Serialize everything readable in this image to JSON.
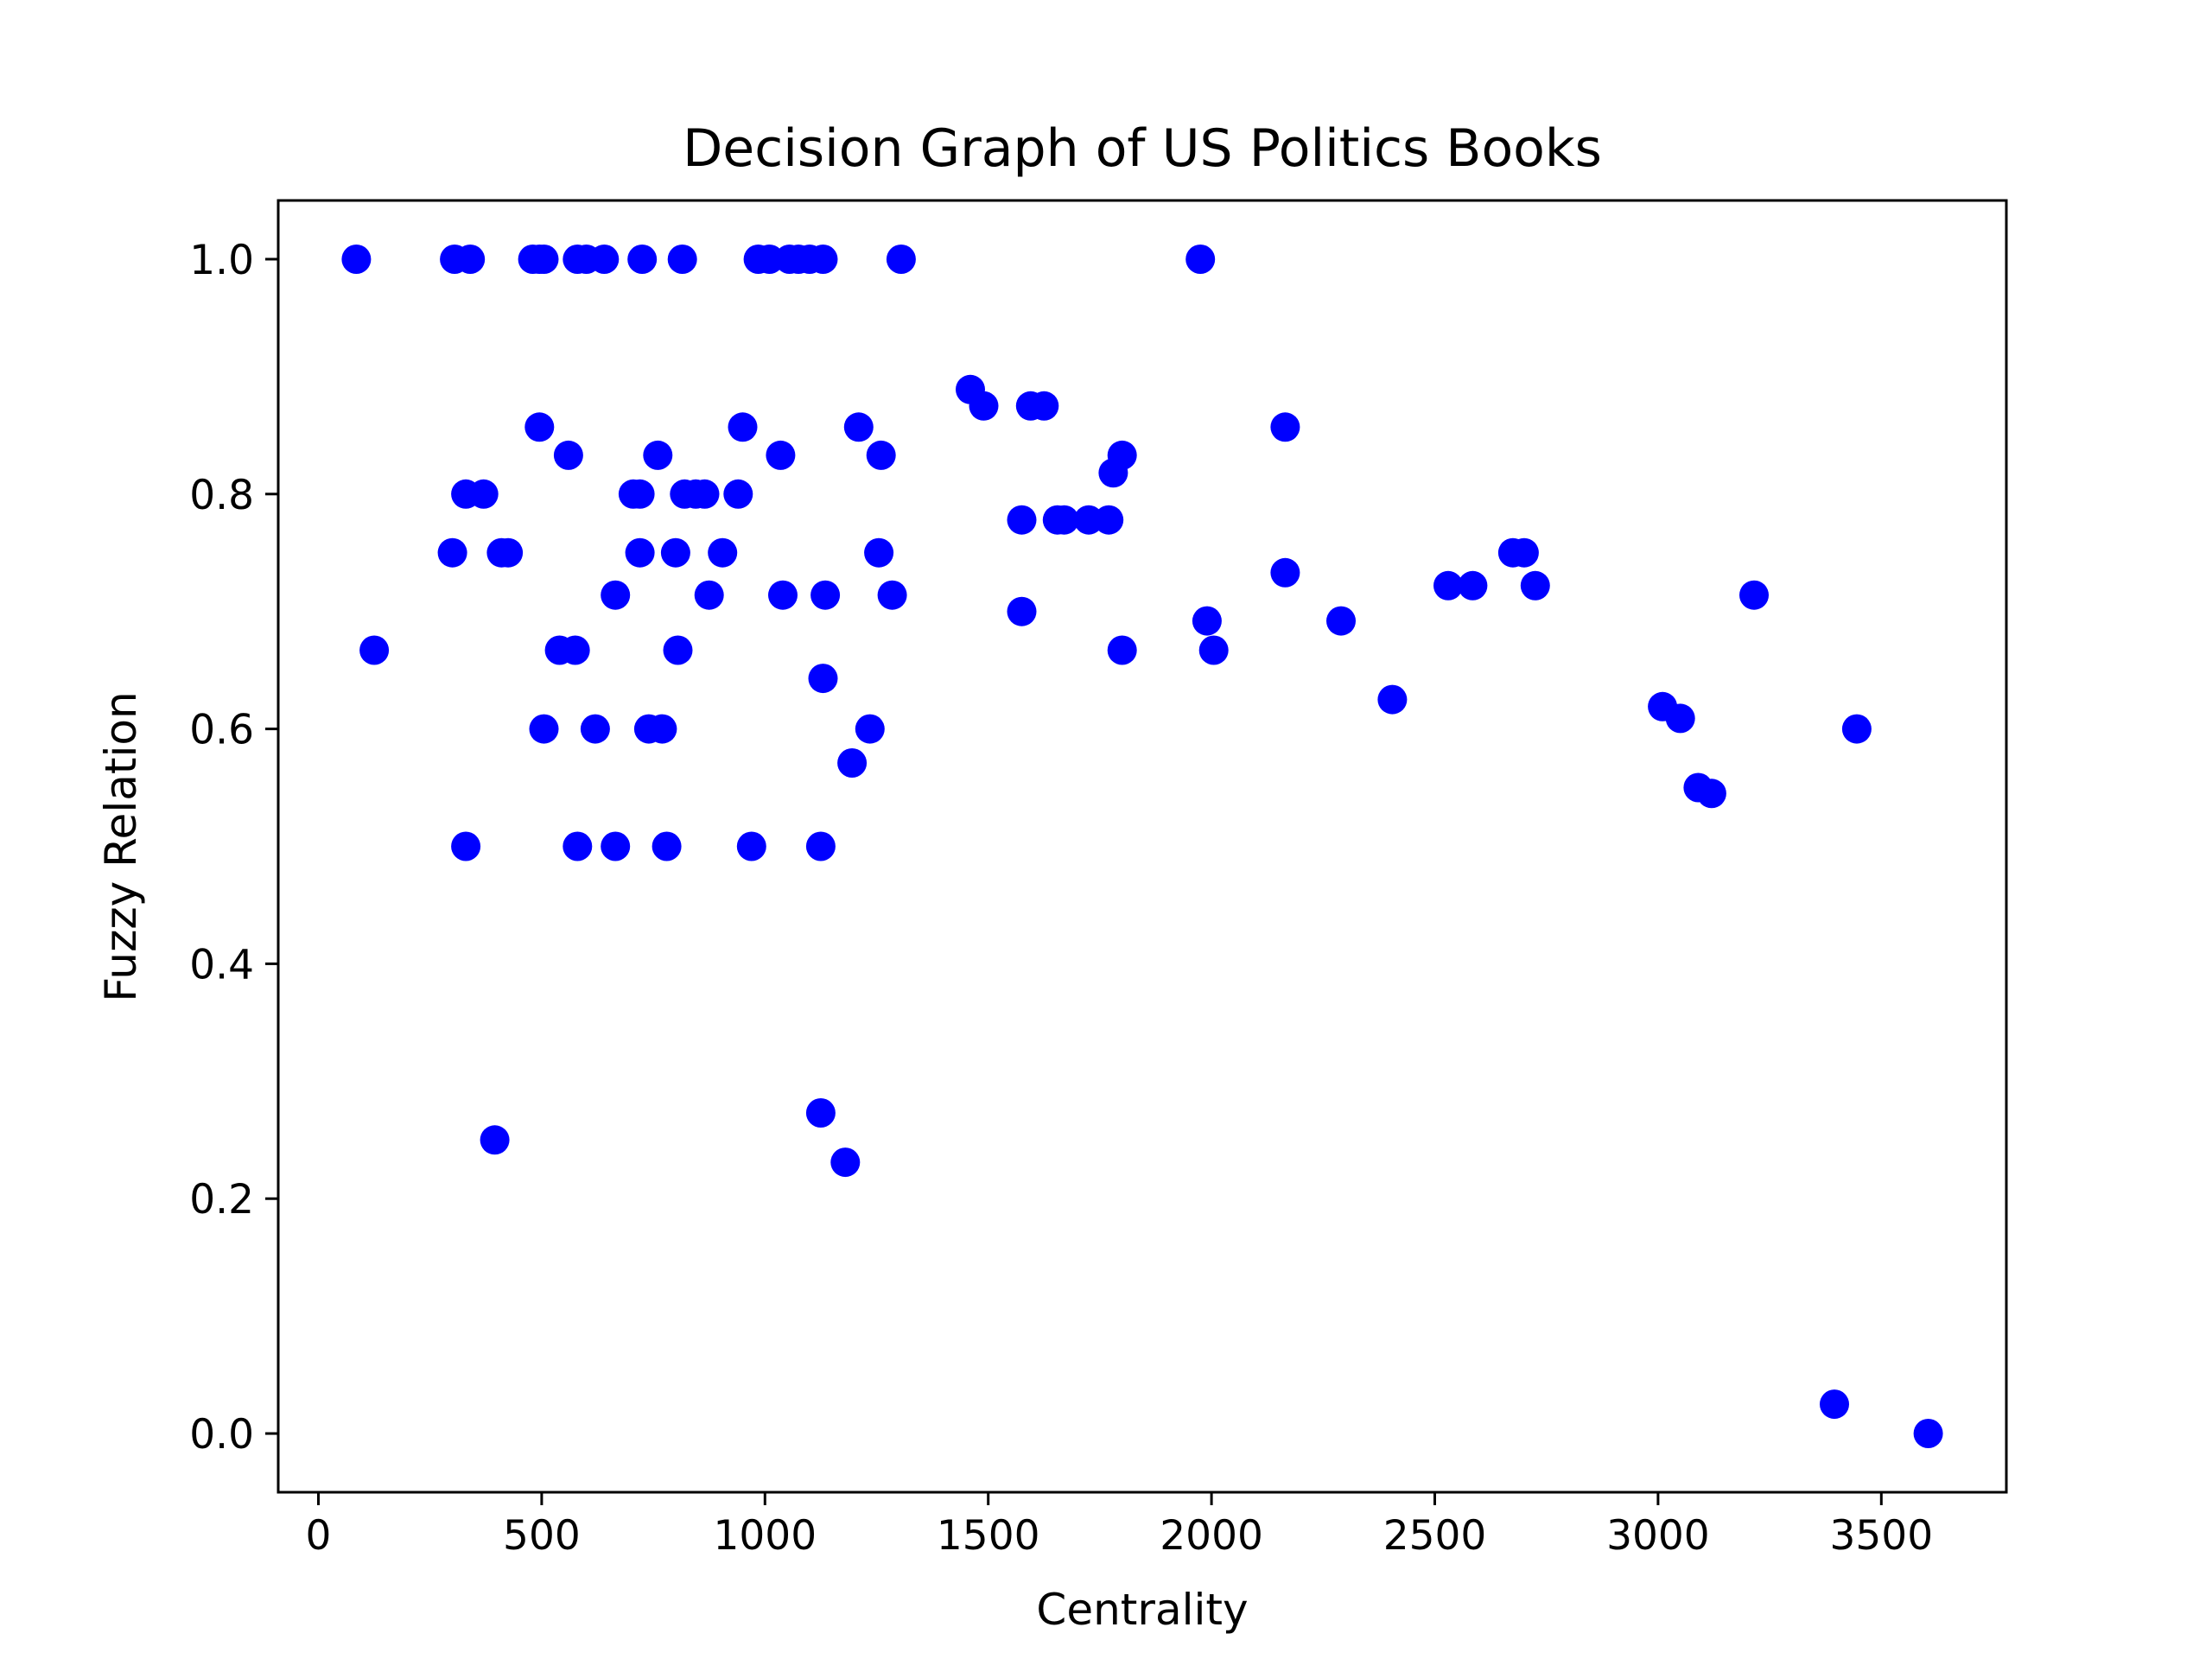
{
  "chart_data": {
    "type": "scatter",
    "title": "Decision Graph of US Politics Books",
    "xlabel": "Centrality",
    "ylabel": "Fuzzy Relation",
    "xlim": [
      -90,
      3780
    ],
    "ylim": [
      -0.05,
      1.05
    ],
    "xticks": [
      0,
      500,
      1000,
      1500,
      2000,
      2500,
      3000,
      3500
    ],
    "xtick_labels": [
      "0",
      "500",
      "1000",
      "1500",
      "2000",
      "2500",
      "3000",
      "3500"
    ],
    "yticks": [
      0.0,
      0.2,
      0.4,
      0.6,
      0.8,
      1.0
    ],
    "ytick_labels": [
      "0.0",
      "0.2",
      "0.4",
      "0.6",
      "0.8",
      "1.0"
    ],
    "grid": false,
    "marker_color": "#0000ff",
    "points": [
      {
        "x": 85,
        "y": 1.0
      },
      {
        "x": 305,
        "y": 1.0
      },
      {
        "x": 340,
        "y": 1.0
      },
      {
        "x": 480,
        "y": 1.0
      },
      {
        "x": 495,
        "y": 1.0
      },
      {
        "x": 505,
        "y": 1.0
      },
      {
        "x": 580,
        "y": 1.0
      },
      {
        "x": 600,
        "y": 1.0
      },
      {
        "x": 640,
        "y": 1.0
      },
      {
        "x": 725,
        "y": 1.0
      },
      {
        "x": 815,
        "y": 1.0
      },
      {
        "x": 985,
        "y": 1.0
      },
      {
        "x": 1010,
        "y": 1.0
      },
      {
        "x": 1055,
        "y": 1.0
      },
      {
        "x": 1075,
        "y": 1.0
      },
      {
        "x": 1100,
        "y": 1.0
      },
      {
        "x": 1130,
        "y": 1.0
      },
      {
        "x": 1305,
        "y": 1.0
      },
      {
        "x": 1975,
        "y": 1.0
      },
      {
        "x": 125,
        "y": 0.667
      },
      {
        "x": 300,
        "y": 0.75
      },
      {
        "x": 330,
        "y": 0.8
      },
      {
        "x": 370,
        "y": 0.8
      },
      {
        "x": 330,
        "y": 0.5
      },
      {
        "x": 395,
        "y": 0.25
      },
      {
        "x": 410,
        "y": 0.75
      },
      {
        "x": 425,
        "y": 0.75
      },
      {
        "x": 495,
        "y": 0.857
      },
      {
        "x": 505,
        "y": 0.6
      },
      {
        "x": 540,
        "y": 0.667
      },
      {
        "x": 560,
        "y": 0.833
      },
      {
        "x": 575,
        "y": 0.667
      },
      {
        "x": 580,
        "y": 0.5
      },
      {
        "x": 620,
        "y": 0.6
      },
      {
        "x": 665,
        "y": 0.714
      },
      {
        "x": 665,
        "y": 0.5
      },
      {
        "x": 705,
        "y": 0.8
      },
      {
        "x": 720,
        "y": 0.8
      },
      {
        "x": 720,
        "y": 0.75
      },
      {
        "x": 740,
        "y": 0.6
      },
      {
        "x": 760,
        "y": 0.833
      },
      {
        "x": 770,
        "y": 0.6
      },
      {
        "x": 780,
        "y": 0.5
      },
      {
        "x": 800,
        "y": 0.75
      },
      {
        "x": 805,
        "y": 0.667
      },
      {
        "x": 820,
        "y": 0.8
      },
      {
        "x": 845,
        "y": 0.8
      },
      {
        "x": 865,
        "y": 0.8
      },
      {
        "x": 875,
        "y": 0.714
      },
      {
        "x": 905,
        "y": 0.75
      },
      {
        "x": 940,
        "y": 0.8
      },
      {
        "x": 950,
        "y": 0.857
      },
      {
        "x": 970,
        "y": 0.5
      },
      {
        "x": 1035,
        "y": 0.833
      },
      {
        "x": 1040,
        "y": 0.714
      },
      {
        "x": 1125,
        "y": 0.5
      },
      {
        "x": 1125,
        "y": 0.273
      },
      {
        "x": 1130,
        "y": 0.643
      },
      {
        "x": 1135,
        "y": 0.714
      },
      {
        "x": 1180,
        "y": 0.231
      },
      {
        "x": 1195,
        "y": 0.571
      },
      {
        "x": 1210,
        "y": 0.857
      },
      {
        "x": 1235,
        "y": 0.6
      },
      {
        "x": 1255,
        "y": 0.75
      },
      {
        "x": 1260,
        "y": 0.833
      },
      {
        "x": 1285,
        "y": 0.714
      },
      {
        "x": 1460,
        "y": 0.889
      },
      {
        "x": 1490,
        "y": 0.875
      },
      {
        "x": 1575,
        "y": 0.778
      },
      {
        "x": 1575,
        "y": 0.7
      },
      {
        "x": 1595,
        "y": 0.875
      },
      {
        "x": 1625,
        "y": 0.875
      },
      {
        "x": 1655,
        "y": 0.778
      },
      {
        "x": 1670,
        "y": 0.778
      },
      {
        "x": 1725,
        "y": 0.778
      },
      {
        "x": 1770,
        "y": 0.778
      },
      {
        "x": 1780,
        "y": 0.818
      },
      {
        "x": 1800,
        "y": 0.833
      },
      {
        "x": 1800,
        "y": 0.667
      },
      {
        "x": 1990,
        "y": 0.692
      },
      {
        "x": 2005,
        "y": 0.667
      },
      {
        "x": 2165,
        "y": 0.857
      },
      {
        "x": 2165,
        "y": 0.733
      },
      {
        "x": 2290,
        "y": 0.692
      },
      {
        "x": 2405,
        "y": 0.625
      },
      {
        "x": 2530,
        "y": 0.722
      },
      {
        "x": 2585,
        "y": 0.722
      },
      {
        "x": 2675,
        "y": 0.75
      },
      {
        "x": 2700,
        "y": 0.75
      },
      {
        "x": 2725,
        "y": 0.722
      },
      {
        "x": 3010,
        "y": 0.619
      },
      {
        "x": 3050,
        "y": 0.609
      },
      {
        "x": 3090,
        "y": 0.55
      },
      {
        "x": 3120,
        "y": 0.545
      },
      {
        "x": 3215,
        "y": 0.714
      },
      {
        "x": 3395,
        "y": 0.025
      },
      {
        "x": 3445,
        "y": 0.6
      },
      {
        "x": 3605,
        "y": 0.0
      }
    ]
  }
}
